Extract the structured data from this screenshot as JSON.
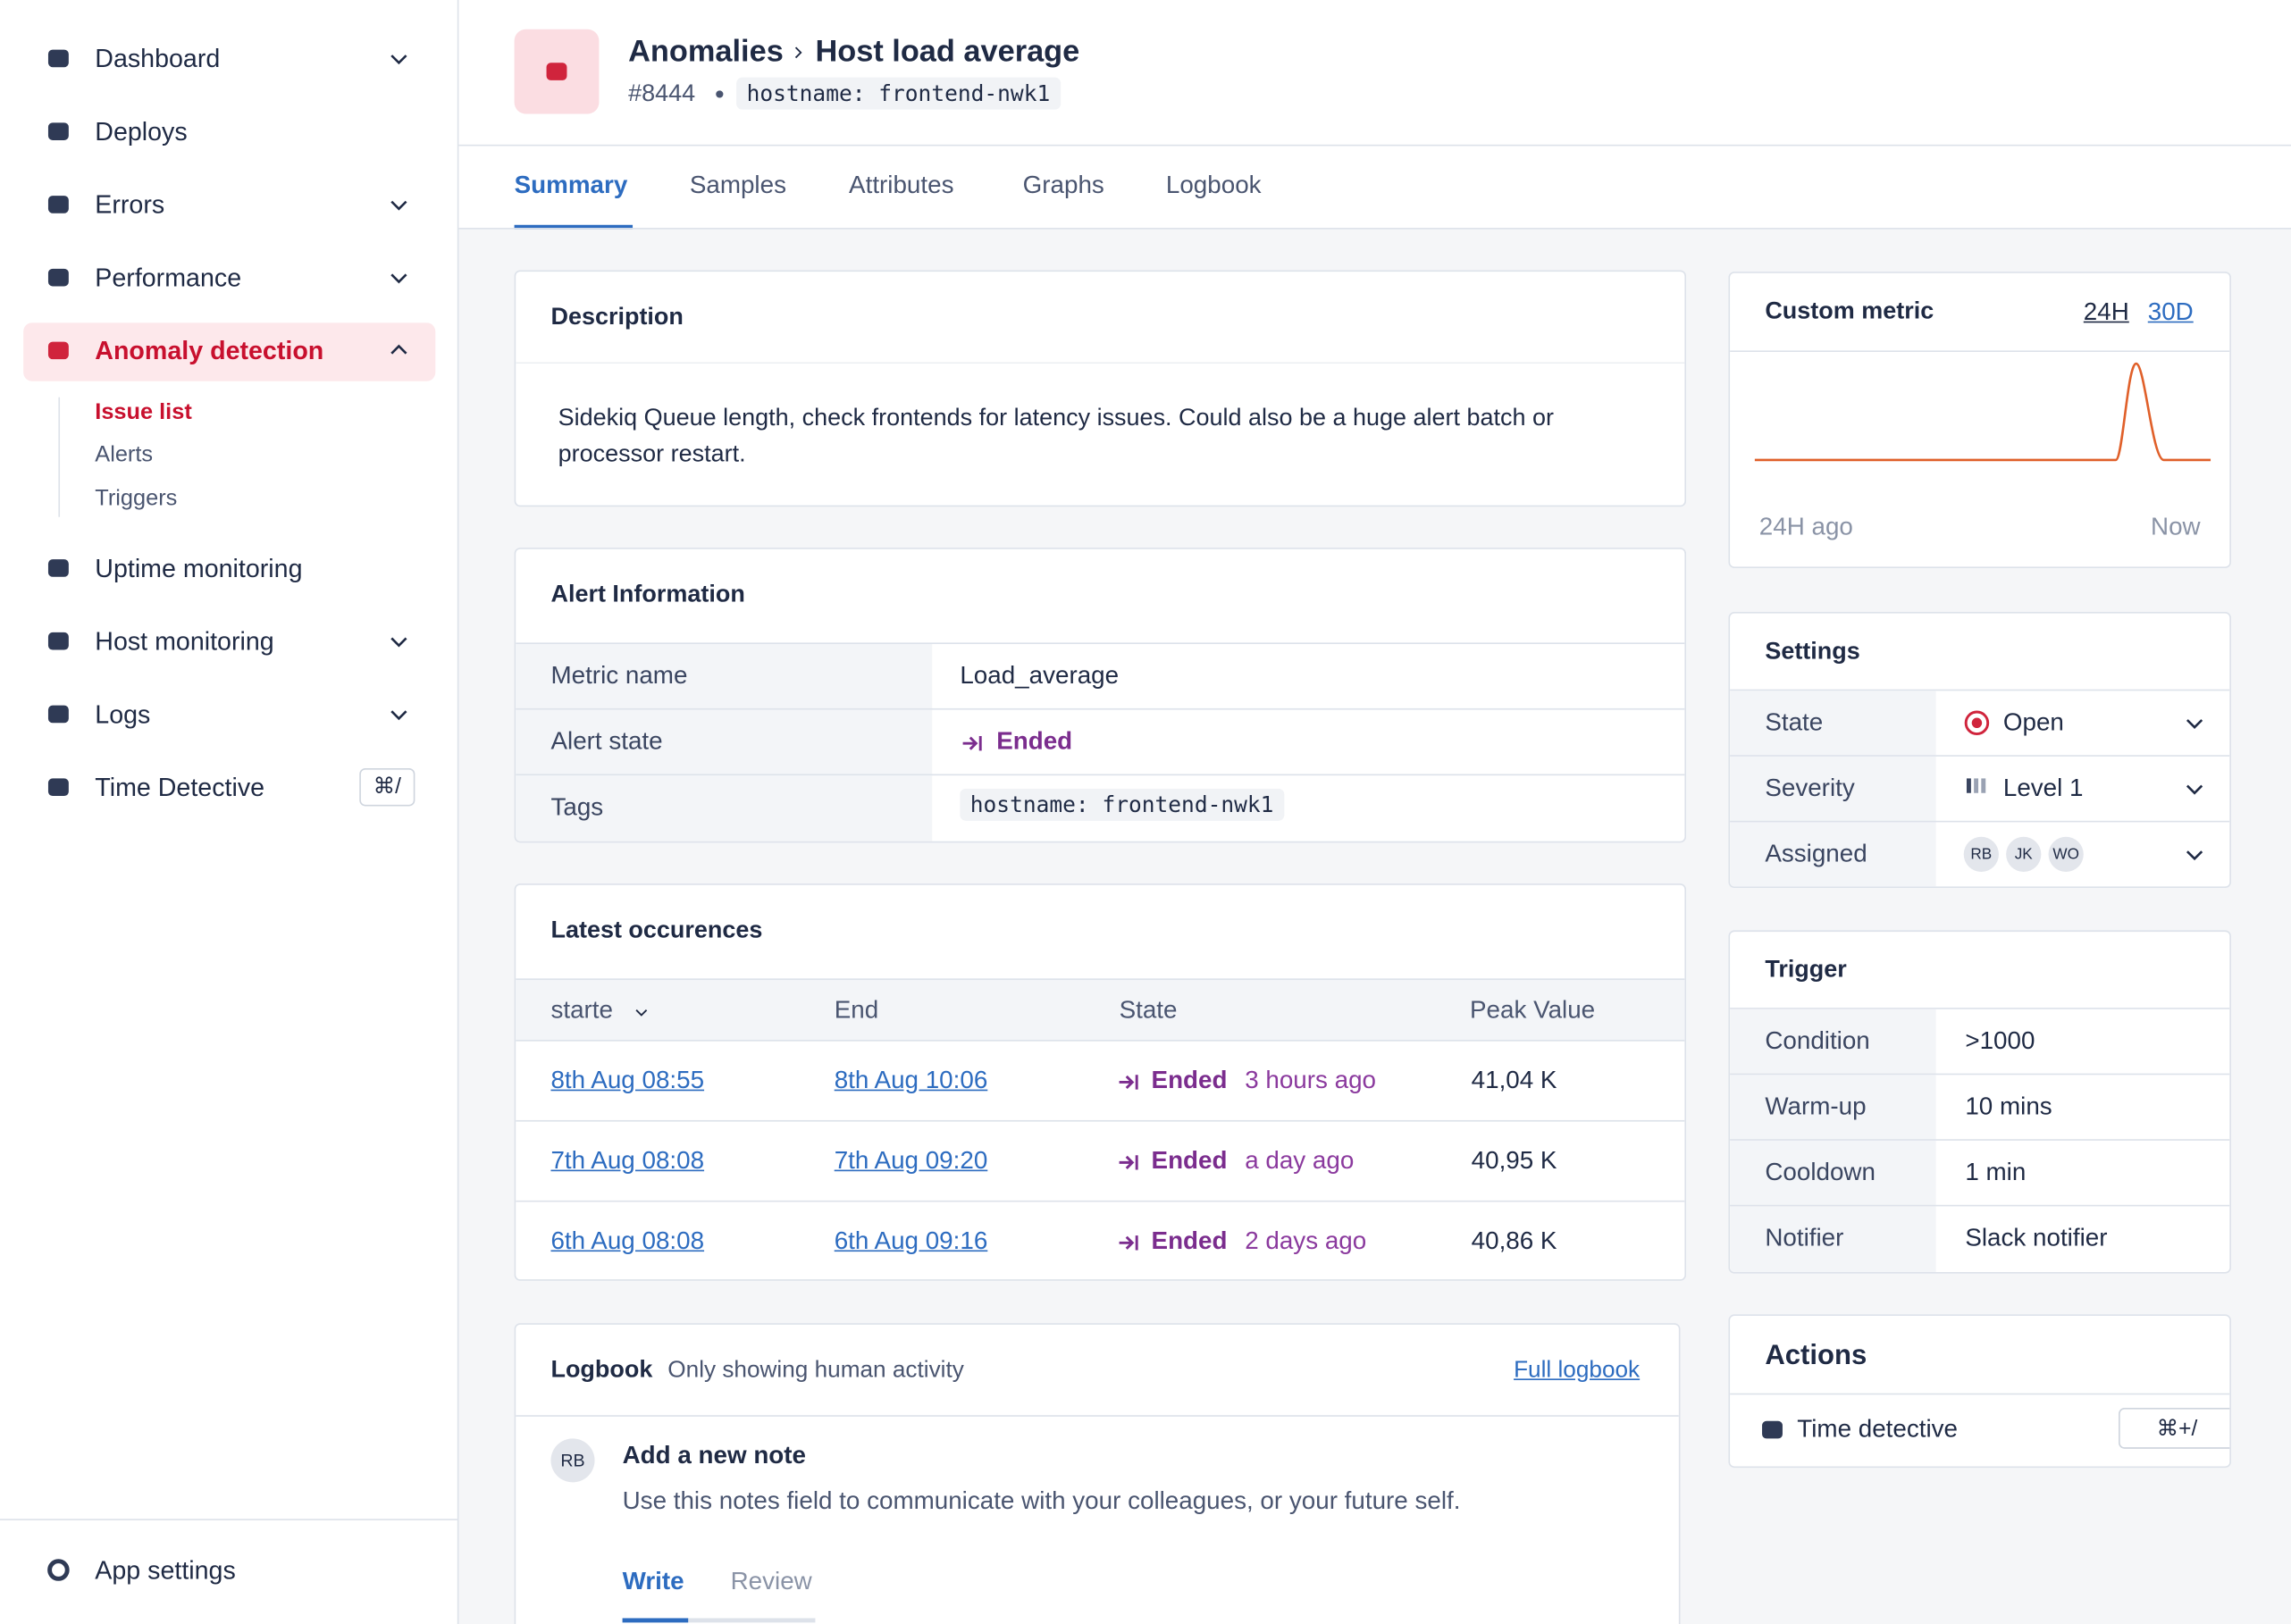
{
  "nav": {
    "items": [
      "Dashboard",
      "Deploys",
      "Errors",
      "Performance",
      "Anomaly detection",
      "Uptime monitoring",
      "Host monitoring",
      "Logs",
      "Time Detective"
    ],
    "subitems": [
      "Issue list",
      "Alerts",
      "Triggers"
    ],
    "shortcut": "⌘/",
    "settings": "App settings"
  },
  "header": {
    "section": "Anomalies",
    "title": "Host load average",
    "id": "#8444",
    "tag": "hostname: frontend-nwk1"
  },
  "tabs": [
    "Summary",
    "Samples",
    "Attributes",
    "Graphs",
    "Logbook"
  ],
  "description": {
    "title": "Description",
    "text": "Sidekiq Queue length, check frontends for latency issues. Could also be a huge alert batch or processor restart."
  },
  "alert_info": {
    "title": "Alert Information",
    "rows": [
      [
        "Metric name",
        "Load_average"
      ],
      [
        "Alert state",
        "Ended"
      ],
      [
        "Tags",
        "hostname: frontend-nwk1"
      ]
    ]
  },
  "occurrences": {
    "title": "Latest occurences",
    "columns": [
      "starte",
      "End",
      "State",
      "Peak Value"
    ],
    "rows": [
      {
        "start": "8th Aug 08:55",
        "end": "8th Aug 10:06",
        "state": "Ended",
        "ago": "3 hours ago",
        "peak": "41,04 K"
      },
      {
        "start": "7th Aug 08:08",
        "end": "7th Aug 09:20",
        "state": "Ended",
        "ago": "a day ago",
        "peak": "40,95 K"
      },
      {
        "start": "6th Aug 08:08",
        "end": "6th Aug 09:16",
        "state": "Ended",
        "ago": "2 days ago",
        "peak": "40,86 K"
      }
    ]
  },
  "logbook": {
    "title": "Logbook",
    "subtitle": "Only showing human activity",
    "link": "Full logbook",
    "avatar": "RB",
    "note_title": "Add a new note",
    "note_text": "Use this notes field to communicate with your colleagues, or your future self.",
    "tabs": [
      "Write",
      "Review"
    ]
  },
  "custom_metric": {
    "title": "Custom metric",
    "ranges": [
      "24H",
      "30D"
    ],
    "start_label": "24H ago",
    "end_label": "Now"
  },
  "settings": {
    "title": "Settings",
    "rows": [
      [
        "State",
        "Open"
      ],
      [
        "Severity",
        "Level 1"
      ]
    ],
    "assigned_label": "Assigned",
    "assignees": [
      "RB",
      "JK",
      "WO"
    ]
  },
  "trigger": {
    "title": "Trigger",
    "rows": [
      [
        "Condition",
        ">1000"
      ],
      [
        "Warm-up",
        "10 mins"
      ],
      [
        "Cooldown",
        "1 min"
      ],
      [
        "Notifier",
        "Slack notifier"
      ]
    ]
  },
  "actions": {
    "title": "Actions",
    "item": "Time detective",
    "shortcut": "⌘+/"
  }
}
